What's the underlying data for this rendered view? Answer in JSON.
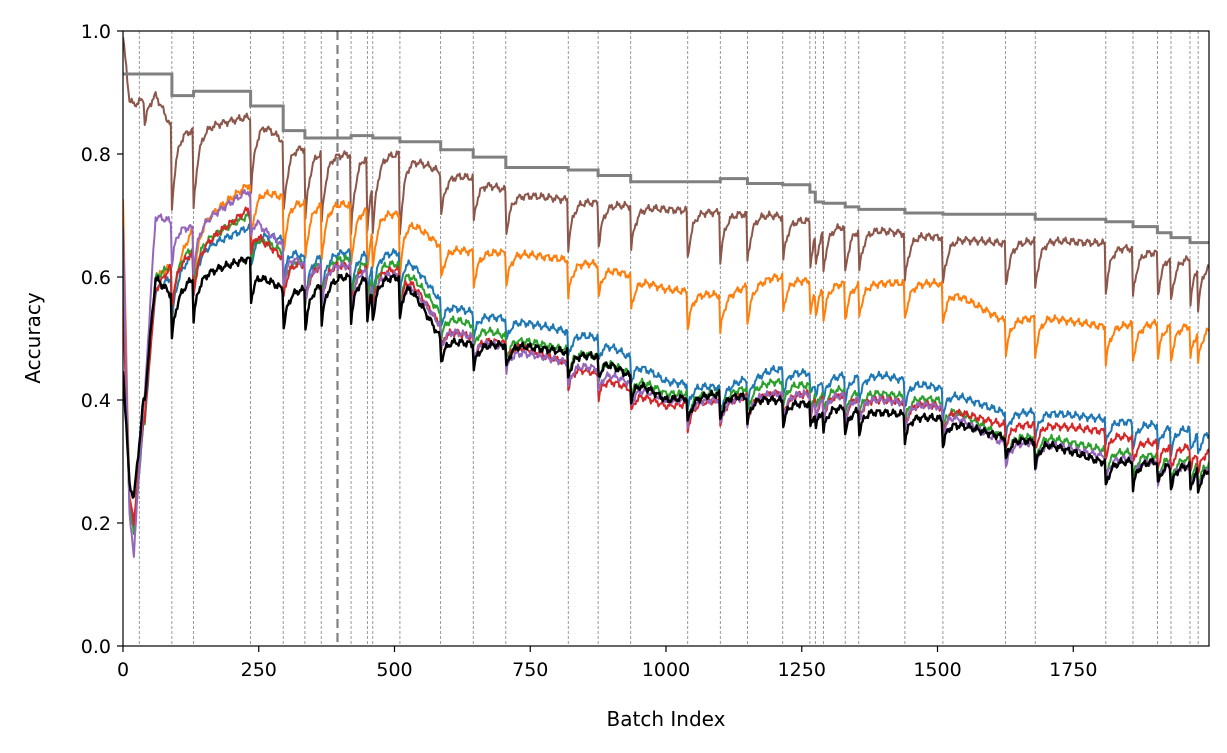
{
  "chart_data": {
    "type": "line",
    "xlabel": "Batch Index",
    "ylabel": "Accuracy",
    "xlim": [
      0,
      2000
    ],
    "ylim": [
      0.0,
      1.0
    ],
    "xticks": [
      "0",
      "250",
      "500",
      "750",
      "1000",
      "1250",
      "1500",
      "1750"
    ],
    "yticks": [
      "0.0",
      "0.2",
      "0.4",
      "0.6",
      "0.8",
      "1.0"
    ],
    "grid": false,
    "legend": "none",
    "boundaries": [
      30,
      90,
      130,
      235,
      295,
      335,
      365,
      420,
      450,
      460,
      510,
      585,
      645,
      705,
      820,
      875,
      935,
      1040,
      1100,
      1150,
      1215,
      1265,
      1275,
      1290,
      1330,
      1355,
      1440,
      1510,
      1625,
      1680,
      1810,
      1860,
      1905,
      1930,
      1965,
      1980
    ],
    "highlight_x": 395,
    "step_line": {
      "color": "#808080",
      "x": [
        0,
        30,
        30,
        90,
        90,
        130,
        130,
        235,
        235,
        295,
        295,
        335,
        335,
        420,
        420,
        460,
        460,
        510,
        510,
        585,
        585,
        645,
        645,
        705,
        705,
        820,
        820,
        875,
        875,
        935,
        935,
        1100,
        1100,
        1150,
        1150,
        1215,
        1215,
        1265,
        1265,
        1275,
        1275,
        1290,
        1290,
        1330,
        1330,
        1355,
        1355,
        1440,
        1440,
        1510,
        1510,
        1680,
        1680,
        1810,
        1810,
        1860,
        1860,
        1905,
        1905,
        1930,
        1930,
        1965,
        1965,
        2000
      ],
      "y": [
        0.93,
        0.93,
        0.93,
        0.93,
        0.895,
        0.895,
        0.902,
        0.902,
        0.878,
        0.878,
        0.838,
        0.838,
        0.826,
        0.826,
        0.83,
        0.83,
        0.826,
        0.826,
        0.82,
        0.82,
        0.807,
        0.807,
        0.795,
        0.795,
        0.778,
        0.778,
        0.774,
        0.774,
        0.765,
        0.765,
        0.755,
        0.755,
        0.76,
        0.76,
        0.752,
        0.752,
        0.75,
        0.75,
        0.738,
        0.738,
        0.722,
        0.722,
        0.72,
        0.72,
        0.714,
        0.714,
        0.71,
        0.71,
        0.704,
        0.704,
        0.702,
        0.702,
        0.694,
        0.694,
        0.69,
        0.69,
        0.682,
        0.682,
        0.672,
        0.672,
        0.664,
        0.664,
        0.656,
        0.656
      ]
    },
    "series": [
      {
        "color": "#8c564b",
        "start": 0.99,
        "rise": 0.38,
        "drop": 0.13,
        "x": [
          0,
          20,
          60,
          90,
          130,
          230,
          260,
          295,
          335,
          400,
          520,
          585,
          650,
          720,
          880,
          1000,
          1100,
          1200,
          1300,
          1400,
          1500,
          1620,
          1700,
          1800,
          1900,
          2000
        ],
        "y": [
          0.9,
          0.88,
          0.9,
          0.84,
          0.84,
          0.86,
          0.85,
          0.82,
          0.81,
          0.8,
          0.8,
          0.77,
          0.76,
          0.735,
          0.72,
          0.71,
          0.705,
          0.7,
          0.685,
          0.675,
          0.665,
          0.655,
          0.66,
          0.655,
          0.64,
          0.625
        ]
      },
      {
        "color": "#ff7f0e",
        "start": 0.72,
        "rise": 0.38,
        "drop": 0.1,
        "x": [
          0,
          20,
          60,
          90,
          130,
          230,
          260,
          295,
          335,
          400,
          520,
          585,
          650,
          720,
          880,
          1000,
          1100,
          1200,
          1300,
          1400,
          1500,
          1620,
          1700,
          1800,
          1900,
          2000
        ],
        "y": [
          0.3,
          0.2,
          0.6,
          0.62,
          0.68,
          0.75,
          0.74,
          0.73,
          0.72,
          0.72,
          0.7,
          0.65,
          0.64,
          0.64,
          0.62,
          0.58,
          0.57,
          0.6,
          0.59,
          0.59,
          0.59,
          0.53,
          0.535,
          0.52,
          0.525,
          0.52
        ]
      },
      {
        "color": "#1f77b4",
        "start": 0.62,
        "rise": 0.38,
        "drop": 0.07,
        "x": [
          0,
          20,
          60,
          90,
          130,
          230,
          260,
          295,
          335,
          400,
          520,
          585,
          650,
          720,
          880,
          1000,
          1100,
          1200,
          1300,
          1400,
          1500,
          1620,
          1700,
          1800,
          1900,
          2000
        ],
        "y": [
          0.3,
          0.19,
          0.58,
          0.6,
          0.64,
          0.68,
          0.67,
          0.66,
          0.63,
          0.64,
          0.64,
          0.56,
          0.54,
          0.53,
          0.5,
          0.43,
          0.42,
          0.45,
          0.44,
          0.44,
          0.42,
          0.38,
          0.38,
          0.37,
          0.36,
          0.35
        ]
      },
      {
        "color": "#2ca02c",
        "start": 0.6,
        "rise": 0.38,
        "drop": 0.07,
        "x": [
          0,
          20,
          60,
          90,
          130,
          230,
          260,
          295,
          335,
          400,
          520,
          585,
          650,
          720,
          880,
          1000,
          1100,
          1200,
          1300,
          1400,
          1500,
          1620,
          1700,
          1800,
          1900,
          2000
        ],
        "y": [
          0.3,
          0.18,
          0.6,
          0.62,
          0.65,
          0.7,
          0.66,
          0.64,
          0.62,
          0.63,
          0.62,
          0.54,
          0.52,
          0.5,
          0.47,
          0.41,
          0.41,
          0.43,
          0.42,
          0.41,
          0.4,
          0.34,
          0.34,
          0.32,
          0.31,
          0.3
        ]
      },
      {
        "color": "#d62728",
        "start": 0.55,
        "rise": 0.38,
        "drop": 0.07,
        "x": [
          0,
          20,
          60,
          90,
          130,
          230,
          260,
          295,
          335,
          400,
          520,
          585,
          650,
          720,
          880,
          1000,
          1100,
          1200,
          1300,
          1400,
          1500,
          1620,
          1700,
          1800,
          1900,
          2000
        ],
        "y": [
          0.3,
          0.2,
          0.58,
          0.62,
          0.64,
          0.71,
          0.66,
          0.63,
          0.62,
          0.62,
          0.61,
          0.52,
          0.5,
          0.49,
          0.44,
          0.39,
          0.4,
          0.41,
          0.41,
          0.4,
          0.39,
          0.36,
          0.36,
          0.35,
          0.33,
          0.32
        ]
      },
      {
        "color": "#9467bd",
        "start": 0.68,
        "rise": 0.38,
        "drop": 0.07,
        "x": [
          0,
          20,
          60,
          90,
          130,
          230,
          260,
          295,
          335,
          400,
          520,
          585,
          650,
          720,
          880,
          1000,
          1100,
          1200,
          1300,
          1400,
          1500,
          1620,
          1700,
          1800,
          1900,
          2000
        ],
        "y": [
          0.3,
          0.15,
          0.7,
          0.69,
          0.68,
          0.74,
          0.68,
          0.65,
          0.62,
          0.62,
          0.6,
          0.52,
          0.5,
          0.48,
          0.45,
          0.4,
          0.4,
          0.41,
          0.41,
          0.4,
          0.39,
          0.33,
          0.33,
          0.31,
          0.3,
          0.29
        ]
      },
      {
        "color": "#000000",
        "start": 0.45,
        "rise": 0.38,
        "drop": 0.07,
        "x": [
          0,
          20,
          60,
          90,
          130,
          230,
          260,
          295,
          335,
          400,
          520,
          585,
          650,
          720,
          880,
          1000,
          1100,
          1200,
          1300,
          1400,
          1500,
          1620,
          1700,
          1800,
          1900,
          2000
        ],
        "y": [
          0.3,
          0.24,
          0.6,
          0.57,
          0.6,
          0.63,
          0.6,
          0.58,
          0.58,
          0.6,
          0.6,
          0.5,
          0.49,
          0.49,
          0.47,
          0.4,
          0.41,
          0.4,
          0.39,
          0.38,
          0.37,
          0.34,
          0.33,
          0.3,
          0.3,
          0.29
        ]
      }
    ]
  }
}
